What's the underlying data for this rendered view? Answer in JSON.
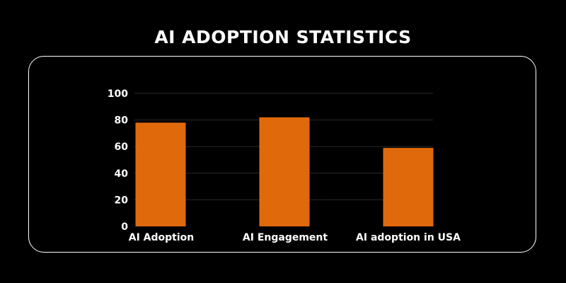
{
  "title": "AI ADOPTION STATISTICS",
  "colors": {
    "background": "#000000",
    "bar": "#E0690C",
    "text": "#ffffff",
    "grid": "#2a2a2a"
  },
  "chart_data": {
    "type": "bar",
    "title": "AI ADOPTION STATISTICS",
    "categories": [
      "AI Adoption",
      "AI Engagement",
      "AI adoption in USA"
    ],
    "values": [
      78,
      82,
      59
    ],
    "xlabel": "",
    "ylabel": "",
    "ylim": [
      0,
      100
    ],
    "yticks": [
      0,
      20,
      40,
      60,
      80,
      100
    ],
    "grid": true,
    "legend": "none"
  }
}
